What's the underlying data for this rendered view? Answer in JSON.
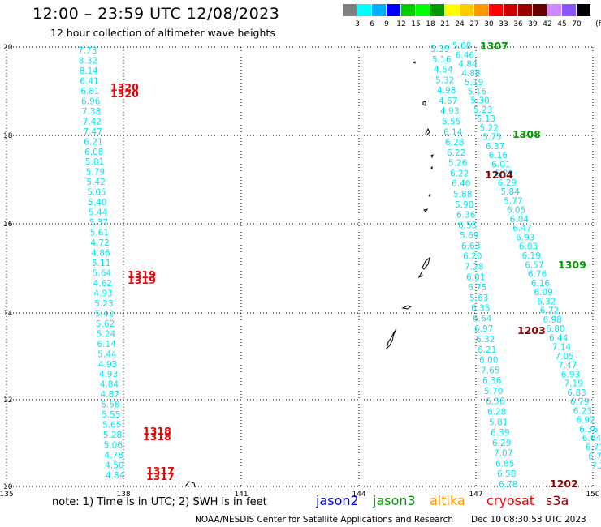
{
  "title": "12:00 – 23:59 UTC 12/08/2023",
  "subtitle": "12 hour collection of altimeter wave heights",
  "legend": {
    "unit": "(ft)",
    "colors": [
      "#808080",
      "#00ffff",
      "#00b0ff",
      "#0000ff",
      "#00cc00",
      "#00ff00",
      "#009900",
      "#ffff00",
      "#ffcc00",
      "#ff9900",
      "#ff0000",
      "#cc0000",
      "#990000",
      "#660000",
      "#cc88ff",
      "#8855ff",
      "#000000"
    ],
    "labels": [
      "3",
      "6",
      "9",
      "12",
      "15",
      "18",
      "21",
      "24",
      "27",
      "30",
      "33",
      "36",
      "39",
      "42",
      "45",
      "70"
    ]
  },
  "axes": {
    "lat_labels": [
      "20",
      "18",
      "16",
      "14",
      "12",
      "10"
    ],
    "lon_labels": [
      "135",
      "138",
      "141",
      "144",
      "147",
      "150"
    ]
  },
  "tracks": [
    {
      "values": [
        "7.73",
        "8.32",
        "8.14",
        "6.41",
        "6.81",
        "6.96",
        "7.38",
        "7.42",
        "7.47",
        "6.21",
        "6.08",
        "5.81",
        "5.79",
        "5.42",
        "5.05",
        "5.40",
        "5.44",
        "5.37",
        "5.61",
        "4.72",
        "4.86",
        "5.11",
        "5.64",
        "4.62",
        "4.93",
        "5.23",
        "5.42",
        "5.62",
        "5.24",
        "6.14",
        "5.44",
        "4.93",
        "4.93",
        "4.84",
        "4.87",
        "5.58",
        "5.55",
        "5.65",
        "5.28",
        "5.06",
        "4.78",
        "4.50",
        "4.84"
      ]
    },
    {
      "values": [
        "5.39",
        "5.16",
        "4.54",
        "5.32",
        "4.98",
        "4.67",
        "4.93",
        "5.55",
        "6.14",
        "6.28",
        "6.22",
        "5.26",
        "6.22",
        "6.40",
        "5.88",
        "5.90",
        "6.36",
        "6.55",
        "5.69",
        "6.63",
        "6.20",
        "7.28",
        "6.01",
        "6.75",
        "5.63",
        "6.35",
        "6.64",
        "6.97",
        "6.32",
        "6.21",
        "6.00",
        "7.65",
        "6.36",
        "5.70",
        "6.36",
        "6.28",
        "5.81",
        "6.39",
        "6.29",
        "7.07",
        "6.85",
        "6.58",
        "6.78"
      ]
    },
    {
      "values": [
        "5.68",
        "6.46",
        "4.84",
        "4.88",
        "5.19",
        "5.16",
        "5.30",
        "5.23",
        "5.13",
        "5.22",
        "5.75",
        "6.37",
        "6.16",
        "6.01",
        "6.22",
        "6.29",
        "5.84",
        "5.77",
        "6.05",
        "6.04",
        "6.47",
        "6.93",
        "6.03",
        "6.19",
        "6.57",
        "6.76",
        "6.16",
        "6.09",
        "6.32",
        "6.72",
        "6.98",
        "6.80",
        "6.44",
        "7.14",
        "7.05",
        "7.47",
        "6.93",
        "7.19",
        "6.83",
        "6.79",
        "6.23",
        "6.92",
        "6.36",
        "6.64",
        "6.71",
        "6.79",
        "7.24"
      ]
    }
  ],
  "passes": [
    {
      "label": "1320",
      "color": "#ee0000"
    },
    {
      "label": "1320",
      "color": "#ee0000"
    },
    {
      "label": "1319",
      "color": "#ee0000"
    },
    {
      "label": "1319",
      "color": "#ee0000"
    },
    {
      "label": "1318",
      "color": "#ee0000"
    },
    {
      "label": "1318",
      "color": "#ee0000"
    },
    {
      "label": "1317",
      "color": "#ee0000"
    },
    {
      "label": "1317",
      "color": "#ee0000"
    },
    {
      "label": "1307",
      "color": "#009900"
    },
    {
      "label": "1308",
      "color": "#009900"
    },
    {
      "label": "1309",
      "color": "#009900"
    },
    {
      "label": "1204",
      "color": "#880000"
    },
    {
      "label": "1203",
      "color": "#880000"
    },
    {
      "label": "1202",
      "color": "#880000"
    }
  ],
  "footer": {
    "note": "note:  1) Time is in UTC;  2) SWH is in feet",
    "credit": "NOAA/NESDIS Center for Satellite Applications and Research",
    "generated": "Dec 10 08:30:53 UTC 2023",
    "satellites": [
      {
        "name": "jason2",
        "color": "#0000dd"
      },
      {
        "name": "jason3",
        "color": "#009900"
      },
      {
        "name": "altika",
        "color": "#ff9900"
      },
      {
        "name": "cryosat",
        "color": "#ee0000"
      },
      {
        "name": "s3a",
        "color": "#880000"
      }
    ]
  }
}
